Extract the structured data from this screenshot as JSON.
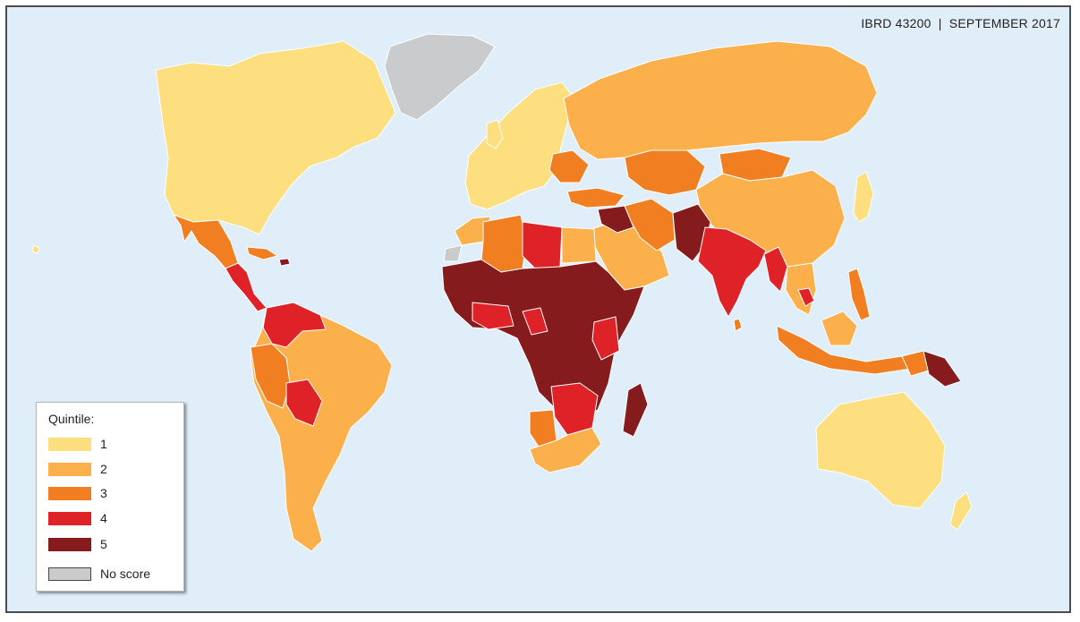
{
  "map": {
    "reference": "IBRD 43200  |  SEPTEMBER 2017",
    "colors": {
      "ocean": "#dfeef9",
      "q1": "#fddf80",
      "q2": "#fbb04c",
      "q3": "#f17f22",
      "q4": "#de2228",
      "q5": "#861b1d",
      "no_score": "#cacbcd"
    }
  },
  "legend": {
    "title": "Quintile:",
    "items": [
      {
        "label": "1",
        "color": "#fddf80"
      },
      {
        "label": "2",
        "color": "#fbb04c"
      },
      {
        "label": "3",
        "color": "#f17f22"
      },
      {
        "label": "4",
        "color": "#de2228"
      },
      {
        "label": "5",
        "color": "#861b1d"
      },
      {
        "label": "No score",
        "color": "#cacbcd"
      }
    ]
  }
}
